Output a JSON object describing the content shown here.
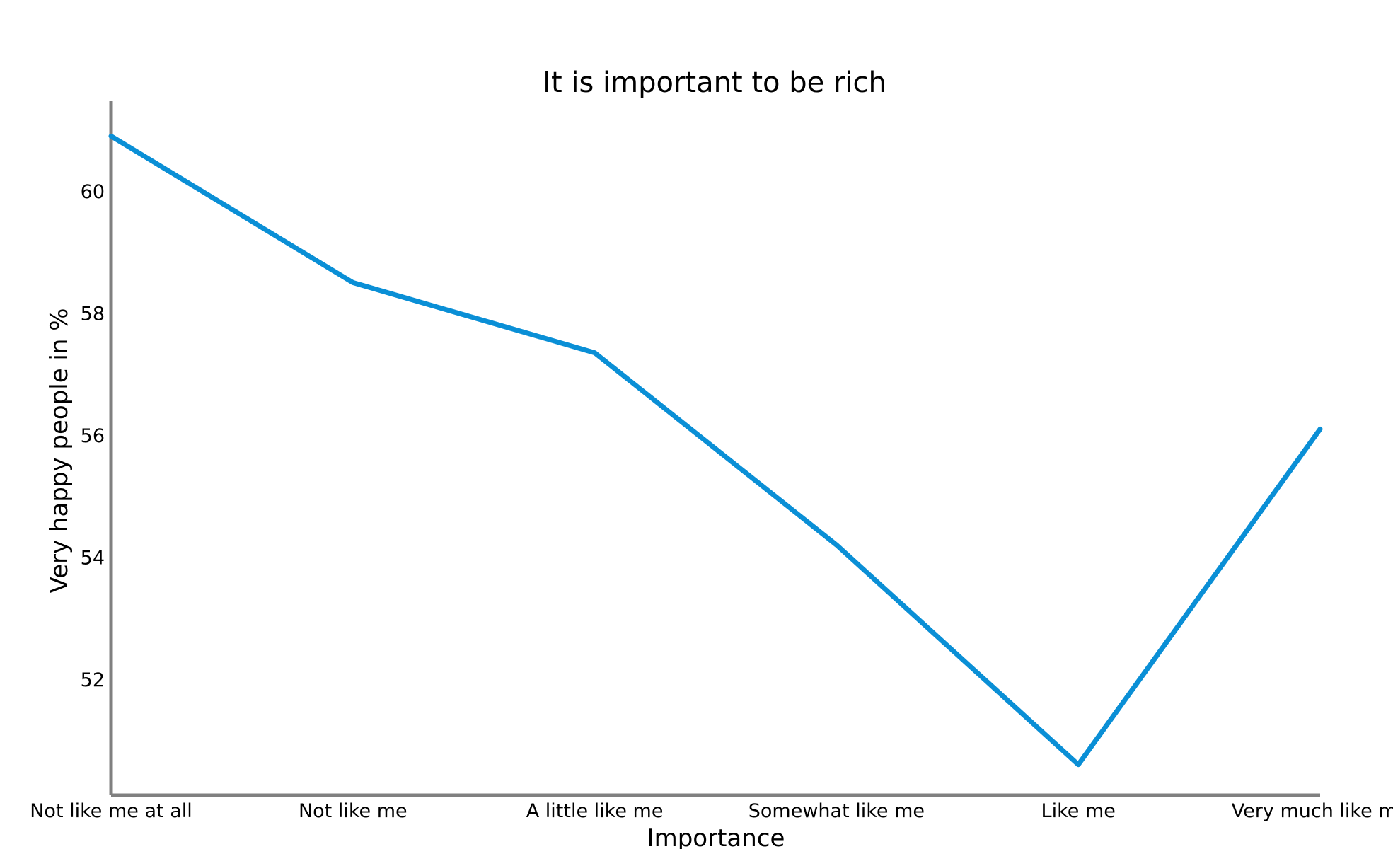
{
  "chart_data": {
    "type": "line",
    "title": "It is important to be rich",
    "xlabel": "Importance",
    "ylabel": "Very happy people in %",
    "categories": [
      "Not like me at all",
      "Not like me",
      "A little like me",
      "Somewhat like me",
      "Like me",
      "Very much like me"
    ],
    "y_ticks": [
      52,
      54,
      56,
      58,
      60
    ],
    "ylim": [
      50.1,
      61.5
    ],
    "grid": false,
    "legend": "none",
    "series": [
      {
        "values": [
          60.9,
          58.5,
          57.35,
          54.2,
          50.6,
          56.1
        ],
        "color": "#0a8fd6"
      }
    ],
    "axis_color": "#808080"
  }
}
